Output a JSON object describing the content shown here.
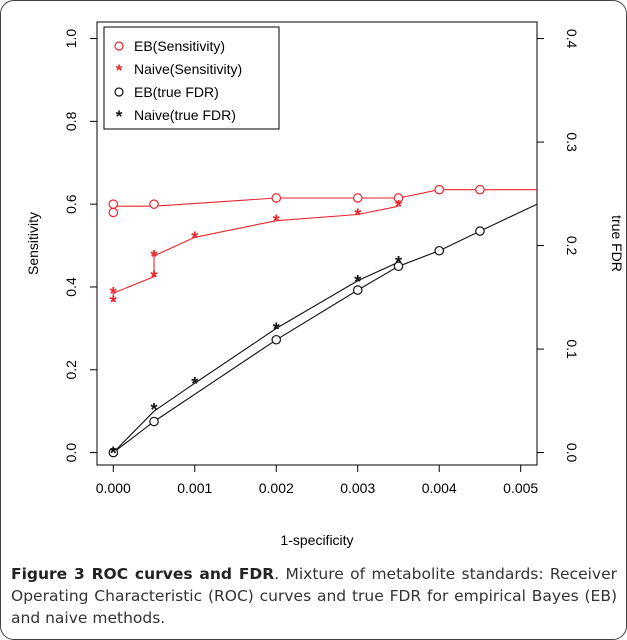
{
  "chart_data": {
    "type": "scatter",
    "xlabel": "1-specificity",
    "ylabel_left": "Sensitivity",
    "ylabel_right": "true FDR",
    "xlim": [
      -0.0002,
      0.0052
    ],
    "ylim_left": [
      -0.03,
      1.04
    ],
    "ylim_right": [
      -0.012,
      0.416
    ],
    "x_ticks": [
      "0.000",
      "0.001",
      "0.002",
      "0.003",
      "0.004",
      "0.005"
    ],
    "y_ticks_left": [
      "0.0",
      "0.2",
      "0.4",
      "0.6",
      "0.8",
      "1.0"
    ],
    "y_ticks_right": [
      "0.0",
      "0.1",
      "0.2",
      "0.3",
      "0.4"
    ],
    "legend_position": "top-left",
    "series": [
      {
        "name": "EB(Sensitivity)",
        "axis": "left",
        "color": "#e8262c",
        "marker": "o",
        "points": [
          [
            0.0,
            0.58
          ],
          [
            0.0,
            0.6
          ],
          [
            0.0005,
            0.6
          ],
          [
            0.002,
            0.615
          ],
          [
            0.003,
            0.615
          ],
          [
            0.0035,
            0.615
          ],
          [
            0.004,
            0.635
          ],
          [
            0.0045,
            0.635
          ]
        ],
        "line": [
          [
            0.0,
            0.595
          ],
          [
            0.0005,
            0.595
          ],
          [
            0.002,
            0.615
          ],
          [
            0.003,
            0.615
          ],
          [
            0.0035,
            0.615
          ],
          [
            0.004,
            0.635
          ],
          [
            0.0052,
            0.635
          ]
        ]
      },
      {
        "name": "Naive(Sensitivity)",
        "axis": "left",
        "color": "#e8262c",
        "marker": "*",
        "points": [
          [
            0.0,
            0.365
          ],
          [
            0.0,
            0.385
          ],
          [
            0.0005,
            0.425
          ],
          [
            0.0005,
            0.475
          ],
          [
            0.001,
            0.52
          ],
          [
            0.002,
            0.56
          ],
          [
            0.003,
            0.575
          ],
          [
            0.0035,
            0.595
          ]
        ],
        "line": [
          [
            0.0,
            0.365
          ],
          [
            0.0,
            0.385
          ],
          [
            0.0005,
            0.425
          ],
          [
            0.0005,
            0.475
          ],
          [
            0.001,
            0.52
          ],
          [
            0.002,
            0.56
          ],
          [
            0.003,
            0.575
          ],
          [
            0.0035,
            0.595
          ]
        ]
      },
      {
        "name": "EB(true FDR)",
        "axis": "right",
        "color": "#111111",
        "marker": "o",
        "points": [
          [
            0.0,
            0.0
          ],
          [
            0.0005,
            0.03
          ],
          [
            0.002,
            0.109
          ],
          [
            0.003,
            0.157
          ],
          [
            0.0035,
            0.18
          ],
          [
            0.004,
            0.195
          ],
          [
            0.0045,
            0.214
          ]
        ],
        "line": [
          [
            0.0,
            0.0
          ],
          [
            0.0005,
            0.03
          ],
          [
            0.002,
            0.109
          ],
          [
            0.003,
            0.157
          ],
          [
            0.0035,
            0.18
          ],
          [
            0.004,
            0.195
          ],
          [
            0.0045,
            0.214
          ],
          [
            0.0052,
            0.24
          ]
        ]
      },
      {
        "name": "Naive(true FDR)",
        "axis": "right",
        "color": "#111111",
        "marker": "*",
        "points": [
          [
            0.0,
            0.0
          ],
          [
            0.0005,
            0.042
          ],
          [
            0.001,
            0.067
          ],
          [
            0.002,
            0.12
          ],
          [
            0.003,
            0.166
          ],
          [
            0.0035,
            0.184
          ]
        ],
        "line": [
          [
            0.0,
            0.0
          ],
          [
            0.0005,
            0.04
          ],
          [
            0.001,
            0.067
          ],
          [
            0.002,
            0.12
          ],
          [
            0.003,
            0.166
          ],
          [
            0.0035,
            0.184
          ]
        ]
      }
    ]
  },
  "caption": {
    "bold": "Figure 3 ROC curves and FDR",
    "text": ". Mixture of metabolite standards: Receiver Operating Characteristic (ROC) curves and true FDR for empirical Bayes (EB) and naive methods."
  },
  "colors": {
    "red": "#e8262c",
    "black": "#111111",
    "frame": "#444444"
  }
}
